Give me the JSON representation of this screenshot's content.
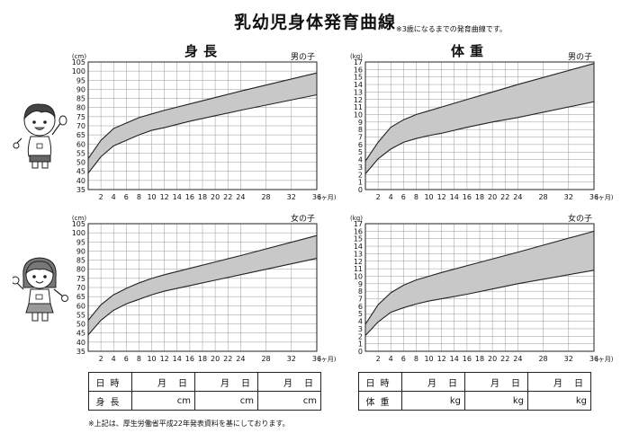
{
  "title": "乳幼児身体発育曲線",
  "title_note": "※3歳になるまでの発育曲線です。",
  "columns": {
    "height": "身長",
    "weight": "体重"
  },
  "footnote": "※上記は、厚生労働省平成22年発表資料を基にしております。",
  "tables": {
    "height": {
      "row1_label": "日時",
      "row2_label": "身長",
      "month": "月",
      "day": "日",
      "unit": "cm"
    },
    "weight": {
      "row1_label": "日時",
      "row2_label": "体重",
      "month": "月",
      "day": "日",
      "unit": "kg"
    }
  },
  "colors": {
    "band": "#c8c8c8",
    "line": "#222222",
    "grid": "#9a9a9a"
  },
  "chart_data": [
    {
      "type": "area",
      "gender_label": "男の子",
      "unit_label": "(cm)",
      "x_suffix": "(ヶ月)",
      "xlim": [
        0,
        36
      ],
      "ylim": [
        35,
        105
      ],
      "y_ticks": [
        35,
        40,
        45,
        50,
        55,
        60,
        65,
        70,
        75,
        80,
        85,
        90,
        95,
        100,
        105
      ],
      "x_ticks": [
        2,
        4,
        6,
        8,
        10,
        12,
        14,
        16,
        18,
        20,
        22,
        24,
        28,
        32,
        36
      ],
      "x": [
        0,
        2,
        4,
        6,
        8,
        10,
        12,
        16,
        20,
        24,
        36
      ],
      "upper": [
        52,
        62,
        68.5,
        71.5,
        74.5,
        76.5,
        78.5,
        82,
        85.5,
        89,
        99
      ],
      "lower": [
        44,
        53,
        59,
        62,
        65,
        67.5,
        69,
        72.5,
        75.5,
        78.5,
        87
      ]
    },
    {
      "type": "area",
      "gender_label": "男の子",
      "unit_label": "(kg)",
      "x_suffix": "(ヶ月)",
      "xlim": [
        0,
        36
      ],
      "ylim": [
        0,
        17
      ],
      "y_ticks": [
        0,
        1,
        2,
        3,
        4,
        5,
        6,
        7,
        8,
        9,
        10,
        11,
        12,
        13,
        14,
        15,
        16,
        17
      ],
      "x_ticks": [
        2,
        4,
        6,
        8,
        10,
        12,
        14,
        16,
        18,
        20,
        22,
        24,
        28,
        32,
        36
      ],
      "x": [
        0,
        2,
        4,
        6,
        8,
        10,
        12,
        16,
        20,
        24,
        36
      ],
      "upper": [
        3.8,
        6.3,
        8.3,
        9.3,
        10,
        10.5,
        11,
        12,
        13,
        14,
        16.8
      ],
      "lower": [
        2.1,
        4.1,
        5.4,
        6.3,
        6.8,
        7.2,
        7.5,
        8.3,
        9,
        9.6,
        11.7
      ]
    },
    {
      "type": "area",
      "gender_label": "女の子",
      "unit_label": "(cm)",
      "x_suffix": "(ヶ月)",
      "xlim": [
        0,
        36
      ],
      "ylim": [
        35,
        105
      ],
      "y_ticks": [
        35,
        40,
        45,
        50,
        55,
        60,
        65,
        70,
        75,
        80,
        85,
        90,
        95,
        100,
        105
      ],
      "x_ticks": [
        2,
        4,
        6,
        8,
        10,
        12,
        14,
        16,
        18,
        20,
        22,
        24,
        28,
        32,
        36
      ],
      "x": [
        0,
        2,
        4,
        6,
        8,
        10,
        12,
        16,
        20,
        24,
        36
      ],
      "upper": [
        52,
        60.5,
        66,
        69.5,
        72.5,
        75,
        77,
        80.5,
        84,
        87.5,
        98.5
      ],
      "lower": [
        44,
        52,
        57.5,
        61,
        63.5,
        66,
        68,
        71,
        74,
        77,
        86
      ]
    },
    {
      "type": "area",
      "gender_label": "女の子",
      "unit_label": "(kg)",
      "x_suffix": "(ヶ月)",
      "xlim": [
        0,
        36
      ],
      "ylim": [
        0,
        17
      ],
      "y_ticks": [
        0,
        1,
        2,
        3,
        4,
        5,
        6,
        7,
        8,
        9,
        10,
        11,
        12,
        13,
        14,
        15,
        16,
        17
      ],
      "x_ticks": [
        2,
        4,
        6,
        8,
        10,
        12,
        14,
        16,
        18,
        20,
        22,
        24,
        28,
        32,
        36
      ],
      "x": [
        0,
        2,
        4,
        6,
        8,
        10,
        12,
        16,
        20,
        24,
        36
      ],
      "upper": [
        3.6,
        6.2,
        7.8,
        8.8,
        9.5,
        10,
        10.5,
        11.4,
        12.3,
        13.2,
        16
      ],
      "lower": [
        2.1,
        3.9,
        5.2,
        5.8,
        6.3,
        6.7,
        7,
        7.6,
        8.3,
        9,
        10.8
      ]
    }
  ]
}
